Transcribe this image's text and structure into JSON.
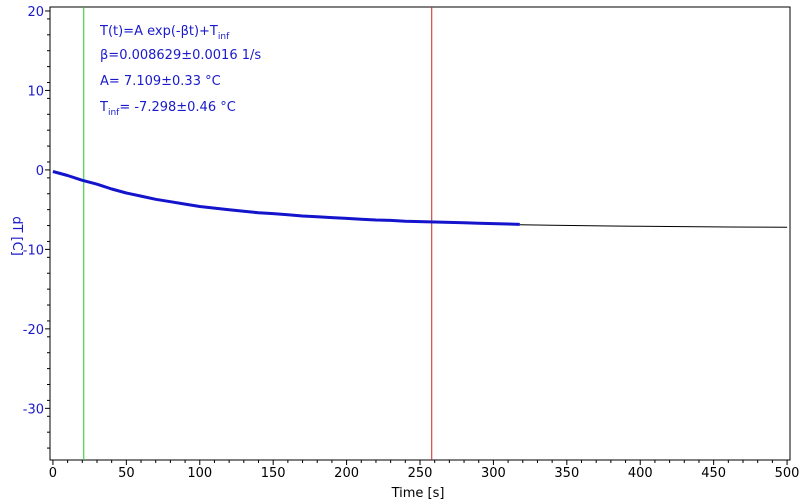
{
  "chart_data": {
    "type": "line",
    "xlabel": "Time [s]",
    "ylabel": "dT [C]",
    "xlim": [
      -2,
      502
    ],
    "ylim": [
      -36.5,
      20.5
    ],
    "x_ticks": [
      0,
      50,
      100,
      150,
      200,
      250,
      300,
      350,
      400,
      450,
      500
    ],
    "y_ticks": [
      20,
      10,
      0,
      -10,
      -20,
      -30
    ],
    "grid": false,
    "colors": {
      "axis_text": "#1a1acc",
      "data": "#1414cc",
      "fit": "#000000",
      "start_marker": "#22cc22",
      "end_marker": "#cc2222"
    },
    "annotations": {
      "formula": {
        "prefix": "T(t)=A exp(-βt)+T",
        "sub": "inf"
      },
      "beta": "β=0.008629±0.0016 1/s",
      "amp": "A= 7.109±0.33 °C",
      "tinf": {
        "prefix": "T",
        "sub": "inf",
        "suffix": "= -7.298±0.46 °C"
      }
    },
    "fit_params": {
      "A": 7.109,
      "beta": 0.008629,
      "T_inf": -7.298
    },
    "vertical_markers": [
      {
        "name": "fit-start",
        "x": 21
      },
      {
        "name": "fit-end",
        "x": 258
      }
    ],
    "series": [
      {
        "x": [
          0,
          10,
          20,
          30,
          40,
          50,
          60,
          70,
          80,
          90,
          100,
          110,
          120,
          130,
          140,
          150,
          160,
          170,
          180,
          190,
          200,
          210,
          220,
          230,
          240,
          250,
          260,
          270,
          280,
          290,
          300,
          310,
          318
        ],
        "values": [
          -0.2,
          -0.7,
          -1.3,
          -1.8,
          -2.4,
          -2.9,
          -3.3,
          -3.7,
          -4.0,
          -4.3,
          -4.6,
          -4.8,
          -5.0,
          -5.2,
          -5.4,
          -5.5,
          -5.65,
          -5.8,
          -5.9,
          -6.0,
          -6.1,
          -6.2,
          -6.3,
          -6.35,
          -6.45,
          -6.5,
          -6.55,
          -6.6,
          -6.65,
          -6.7,
          -6.75,
          -6.8,
          -6.85
        ]
      },
      {
        "x": [
          318,
          340,
          360,
          380,
          400,
          420,
          440,
          460,
          480,
          500
        ],
        "values": [
          -6.9,
          -6.95,
          -7.0,
          -7.05,
          -7.1,
          -7.12,
          -7.15,
          -7.18,
          -7.2,
          -7.22
        ]
      }
    ]
  }
}
